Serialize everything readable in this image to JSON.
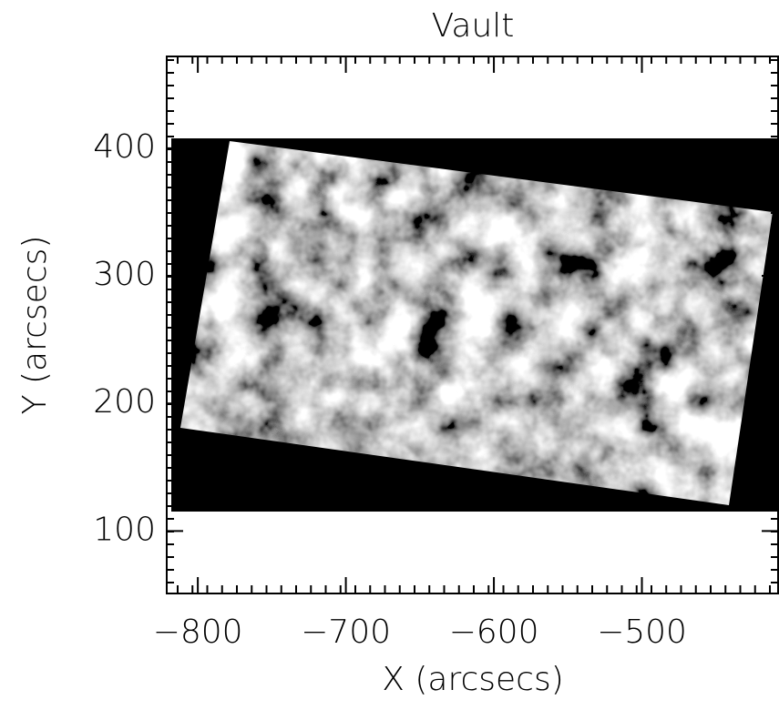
{
  "chart_data": {
    "type": "image",
    "title": "Vault",
    "xlabel": "X (arcsecs)",
    "ylabel": "Y (arcsecs)",
    "xlim": [
      -821,
      -408
    ],
    "ylim": [
      51,
      472
    ],
    "xticks": [
      -800,
      -700,
      -600,
      -500
    ],
    "yticks": [
      100,
      200,
      300,
      400
    ]
  }
}
